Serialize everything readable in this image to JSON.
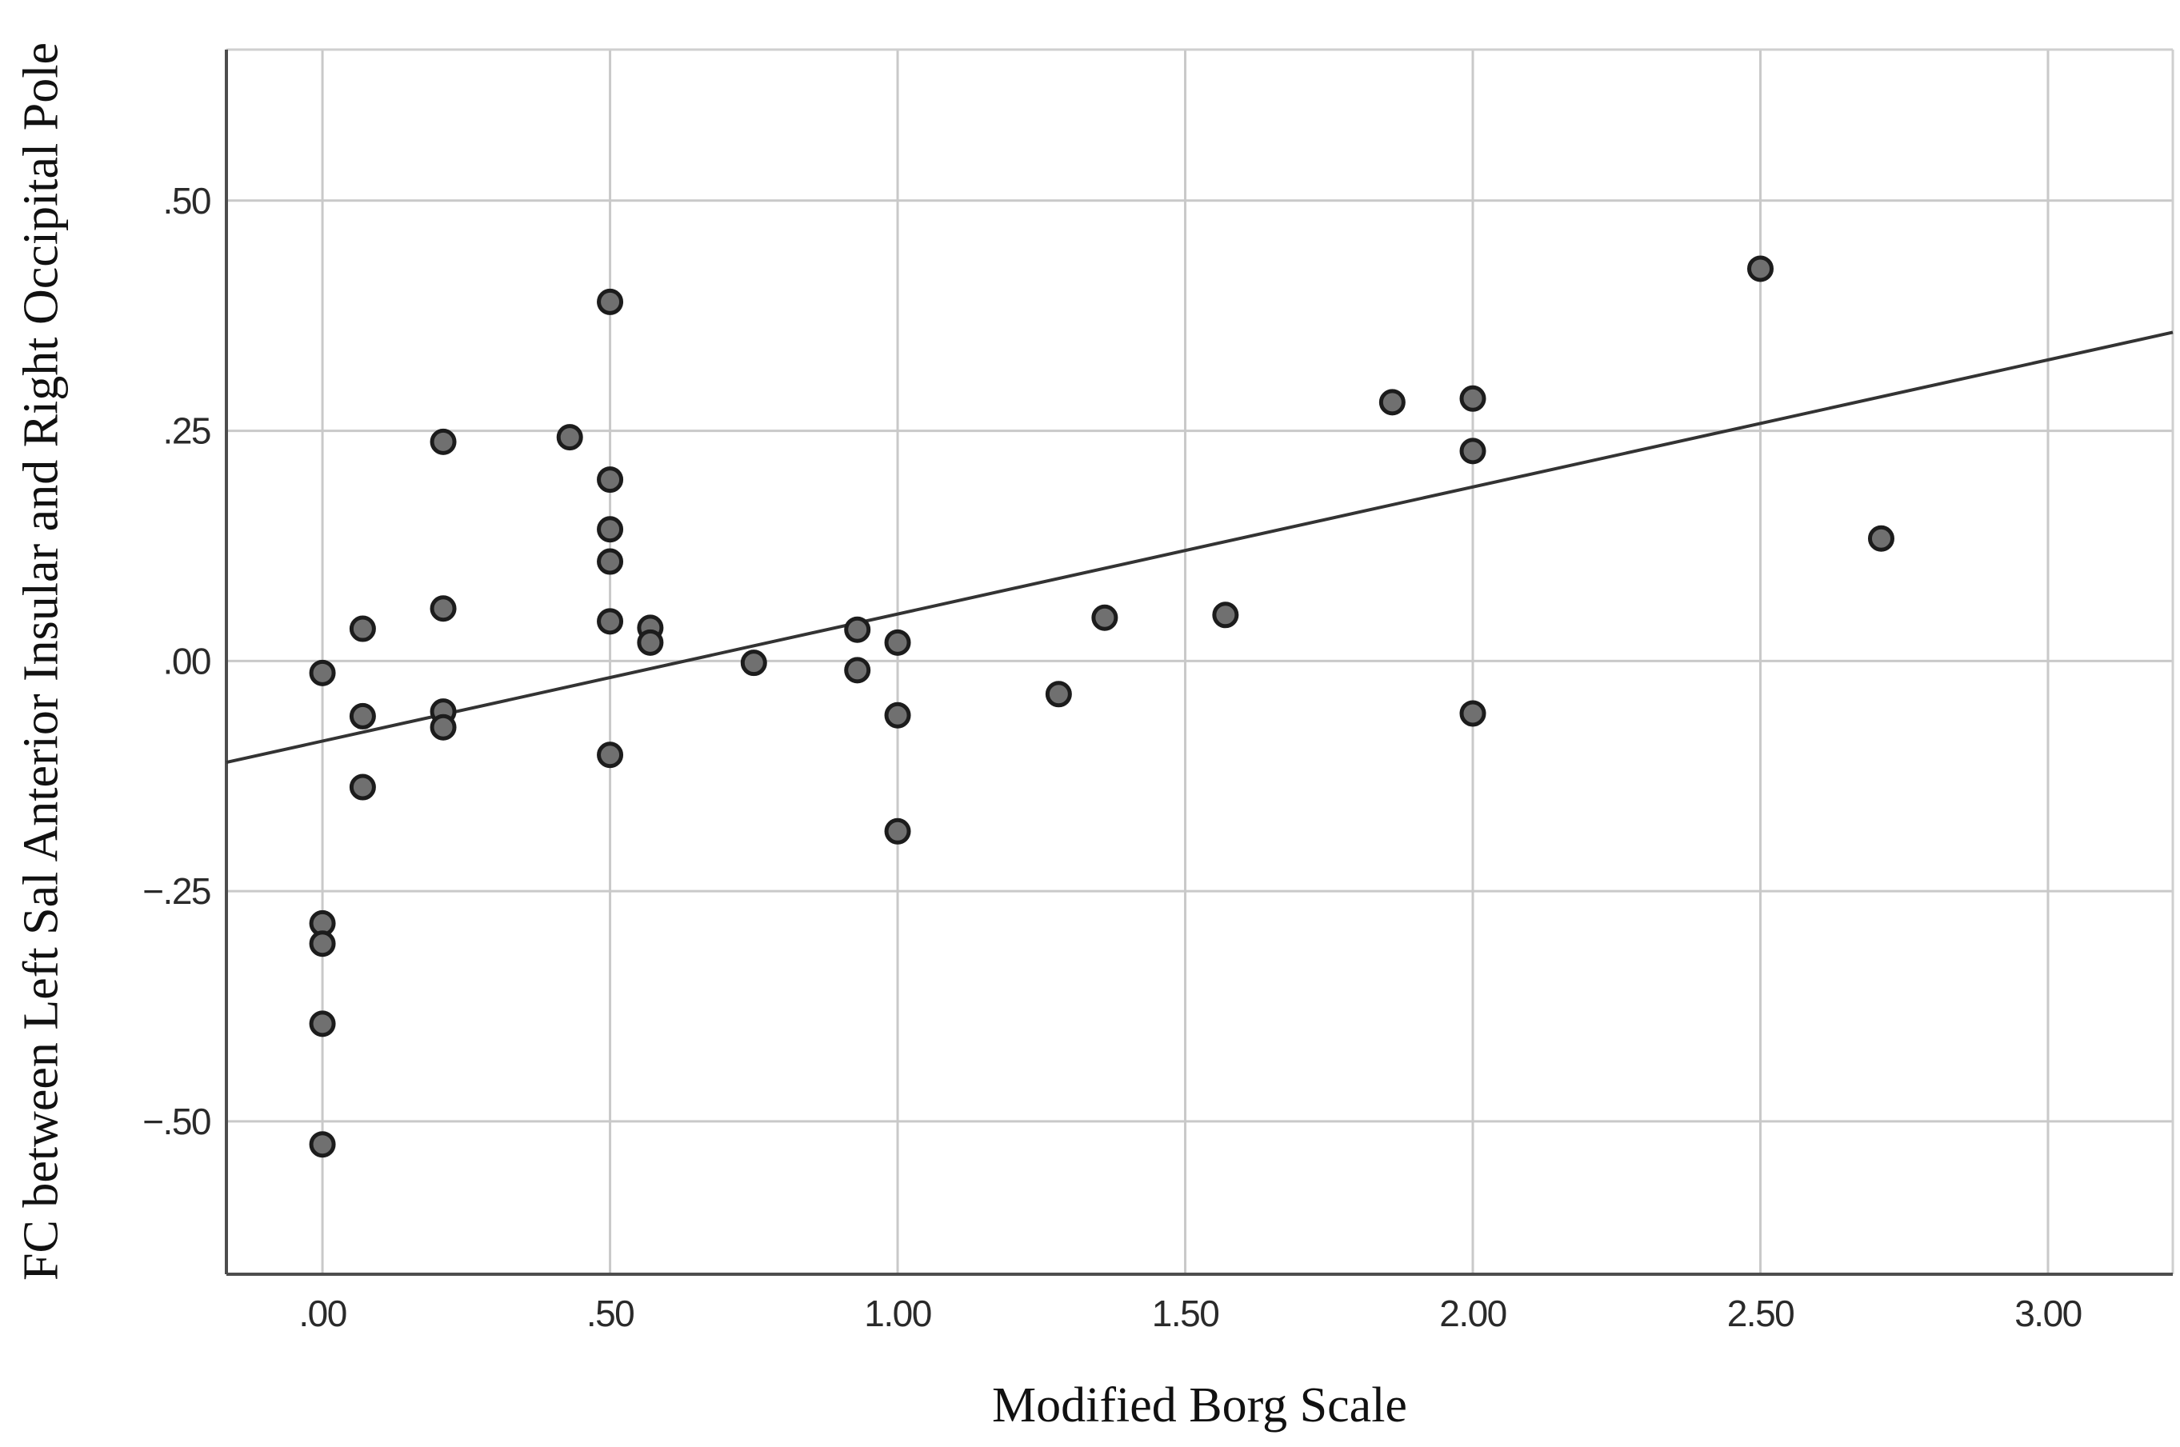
{
  "chart_data": {
    "type": "scatter",
    "title": "",
    "xlabel": "Modified Borg Scale",
    "ylabel": "FC between Left Sal Anterior Insular and Right Occipital Pole",
    "grid": true,
    "legend": "none",
    "xlim": [
      -0.167,
      3.217
    ],
    "ylim": [
      -0.666,
      0.664
    ],
    "x_ticks": [
      {
        "v": 0.0,
        "label": ".00"
      },
      {
        "v": 0.5,
        "label": ".50"
      },
      {
        "v": 1.0,
        "label": "1.00"
      },
      {
        "v": 1.5,
        "label": "1.50"
      },
      {
        "v": 2.0,
        "label": "2.00"
      },
      {
        "v": 2.5,
        "label": "2.50"
      },
      {
        "v": 3.0,
        "label": "3.00"
      }
    ],
    "y_ticks": [
      {
        "v": 0.5,
        "label": ".50"
      },
      {
        "v": 0.25,
        "label": ".25"
      },
      {
        "v": 0.0,
        "label": ".00"
      },
      {
        "v": -0.25,
        "label": "−.25"
      },
      {
        "v": -0.5,
        "label": "−.50"
      }
    ],
    "points": [
      [
        0.0,
        -0.013
      ],
      [
        0.0,
        -0.285
      ],
      [
        0.0,
        -0.307
      ],
      [
        0.0,
        -0.394
      ],
      [
        0.0,
        -0.525
      ],
      [
        0.07,
        0.035
      ],
      [
        0.07,
        -0.06
      ],
      [
        0.07,
        -0.137
      ],
      [
        0.21,
        0.238
      ],
      [
        0.21,
        0.057
      ],
      [
        0.21,
        -0.055
      ],
      [
        0.21,
        -0.072
      ],
      [
        0.43,
        0.243
      ],
      [
        0.5,
        0.39
      ],
      [
        0.5,
        0.197
      ],
      [
        0.5,
        0.143
      ],
      [
        0.5,
        0.108
      ],
      [
        0.5,
        0.043
      ],
      [
        0.5,
        -0.102
      ],
      [
        0.57,
        0.036
      ],
      [
        0.57,
        0.02
      ],
      [
        0.75,
        -0.002
      ],
      [
        0.93,
        0.034
      ],
      [
        0.93,
        -0.01
      ],
      [
        1.0,
        0.02
      ],
      [
        1.0,
        -0.059
      ],
      [
        1.0,
        -0.185
      ],
      [
        1.28,
        -0.036
      ],
      [
        1.36,
        0.047
      ],
      [
        1.57,
        0.05
      ],
      [
        1.86,
        0.281
      ],
      [
        2.0,
        0.285
      ],
      [
        2.0,
        0.228
      ],
      [
        2.0,
        -0.057
      ],
      [
        2.5,
        0.426
      ],
      [
        2.71,
        0.133
      ]
    ],
    "fit_line": {
      "slope": 0.138,
      "intercept": -0.087,
      "x_start": -0.167,
      "x_end": 3.217
    },
    "style": {
      "point_fill": "#707070",
      "point_stroke": "#1c1c1c",
      "grid_color": "#c9c9c9",
      "axis_color": "#4d4d4d",
      "border_color": "#cfcfcf",
      "fit_line_color": "#333333",
      "tick_text_color": "#2a2a2a",
      "background": "#ffffff"
    }
  }
}
